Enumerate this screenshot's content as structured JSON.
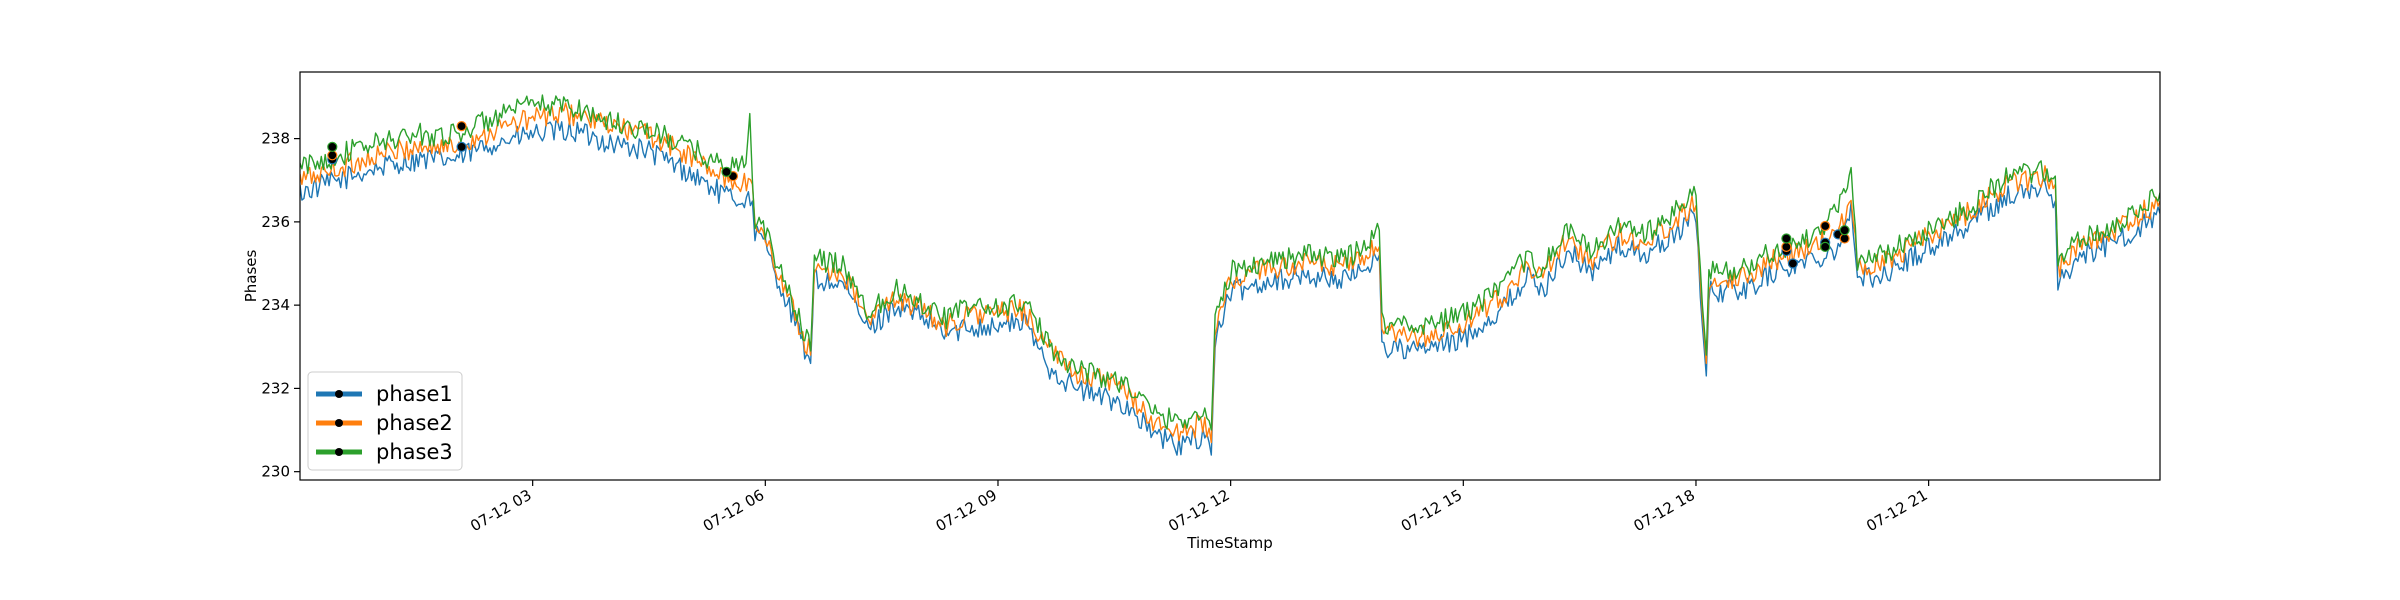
{
  "chart_data": {
    "type": "line",
    "title": "",
    "xlabel": "TimeStamp",
    "ylabel": "Phases",
    "xlim": [
      "07-12 00:00",
      "07-12 23:59"
    ],
    "ylim": [
      229.8,
      239.6
    ],
    "grid": false,
    "legend_position": "lower-left",
    "x_ticks": [
      "07-12 03",
      "07-12 06",
      "07-12 09",
      "07-12 12",
      "07-12 15",
      "07-12 18",
      "07-12 21"
    ],
    "y_ticks": [
      230,
      232,
      234,
      236,
      238
    ],
    "marker_color": "#000000",
    "series": [
      {
        "name": "phase1",
        "color": "#1f77b4",
        "points": [
          [
            "07-12 00:00",
            236.7
          ],
          [
            "07-12 00:30",
            237.0
          ],
          [
            "07-12 01:00",
            237.3
          ],
          [
            "07-12 01:30",
            237.5
          ],
          [
            "07-12 02:00",
            237.5
          ],
          [
            "07-12 02:30",
            237.9
          ],
          [
            "07-12 03:00",
            238.1
          ],
          [
            "07-12 03:30",
            238.2
          ],
          [
            "07-12 04:00",
            237.9
          ],
          [
            "07-12 04:30",
            237.7
          ],
          [
            "07-12 05:00",
            237.2
          ],
          [
            "07-12 05:30",
            236.6
          ],
          [
            "07-12 05:50",
            236.5
          ],
          [
            "07-12 05:52",
            235.8
          ],
          [
            "07-12 06:00",
            235.4
          ],
          [
            "07-12 06:20",
            233.8
          ],
          [
            "07-12 06:35",
            232.6
          ],
          [
            "07-12 06:38",
            234.6
          ],
          [
            "07-12 07:00",
            234.5
          ],
          [
            "07-12 07:20",
            233.4
          ],
          [
            "07-12 07:40",
            234.0
          ],
          [
            "07-12 08:00",
            233.7
          ],
          [
            "07-12 08:20",
            233.3
          ],
          [
            "07-12 08:40",
            233.5
          ],
          [
            "07-12 09:00",
            233.5
          ],
          [
            "07-12 09:20",
            233.6
          ],
          [
            "07-12 09:40",
            232.5
          ],
          [
            "07-12 10:00",
            232.0
          ],
          [
            "07-12 10:20",
            231.8
          ],
          [
            "07-12 10:40",
            231.6
          ],
          [
            "07-12 11:00",
            230.9
          ],
          [
            "07-12 11:20",
            230.6
          ],
          [
            "07-12 11:40",
            230.9
          ],
          [
            "07-12 11:45",
            230.4
          ],
          [
            "07-12 11:48",
            233.2
          ],
          [
            "07-12 12:00",
            234.3
          ],
          [
            "07-12 12:30",
            234.6
          ],
          [
            "07-12 13:00",
            234.7
          ],
          [
            "07-12 13:30",
            234.6
          ],
          [
            "07-12 13:55",
            235.2
          ],
          [
            "07-12 13:57",
            233.0
          ],
          [
            "07-12 14:20",
            232.9
          ],
          [
            "07-12 14:40",
            233.0
          ],
          [
            "07-12 15:00",
            233.2
          ],
          [
            "07-12 15:30",
            233.9
          ],
          [
            "07-12 15:50",
            234.7
          ],
          [
            "07-12 16:00",
            234.3
          ],
          [
            "07-12 16:20",
            235.3
          ],
          [
            "07-12 16:40",
            234.8
          ],
          [
            "07-12 17:00",
            235.4
          ],
          [
            "07-12 17:20",
            235.2
          ],
          [
            "07-12 17:40",
            235.6
          ],
          [
            "07-12 18:00",
            236.2
          ],
          [
            "07-12 18:05",
            233.5
          ],
          [
            "07-12 18:08",
            232.3
          ],
          [
            "07-12 18:10",
            234.3
          ],
          [
            "07-12 18:40",
            234.4
          ],
          [
            "07-12 19:00",
            234.8
          ],
          [
            "07-12 19:30",
            235.1
          ],
          [
            "07-12 19:50",
            235.4
          ],
          [
            "07-12 20:00",
            236.3
          ],
          [
            "07-12 20:05",
            234.6
          ],
          [
            "07-12 20:30",
            234.8
          ],
          [
            "07-12 21:00",
            235.4
          ],
          [
            "07-12 21:30",
            235.9
          ],
          [
            "07-12 22:00",
            236.6
          ],
          [
            "07-12 22:30",
            236.8
          ],
          [
            "07-12 22:38",
            236.5
          ],
          [
            "07-12 22:40",
            234.6
          ],
          [
            "07-12 23:00",
            235.2
          ],
          [
            "07-12 23:30",
            235.6
          ],
          [
            "07-12 23:59",
            236.2
          ]
        ],
        "anomalies": [
          [
            "07-12 00:25",
            237.5
          ],
          [
            "07-12 02:05",
            237.8
          ],
          [
            "07-12 19:10",
            235.3
          ],
          [
            "07-12 19:15",
            235.0
          ],
          [
            "07-12 19:40",
            235.5
          ],
          [
            "07-12 19:50",
            235.7
          ]
        ]
      },
      {
        "name": "phase2",
        "color": "#ff7f0e",
        "points": [
          [
            "07-12 00:00",
            237.0
          ],
          [
            "07-12 00:30",
            237.3
          ],
          [
            "07-12 01:00",
            237.6
          ],
          [
            "07-12 01:30",
            237.8
          ],
          [
            "07-12 02:00",
            237.8
          ],
          [
            "07-12 02:30",
            238.2
          ],
          [
            "07-12 03:00",
            238.5
          ],
          [
            "07-12 03:30",
            238.6
          ],
          [
            "07-12 04:00",
            238.3
          ],
          [
            "07-12 04:30",
            238.1
          ],
          [
            "07-12 05:00",
            237.6
          ],
          [
            "07-12 05:30",
            237.0
          ],
          [
            "07-12 05:50",
            236.9
          ],
          [
            "07-12 05:52",
            236.0
          ],
          [
            "07-12 06:00",
            235.6
          ],
          [
            "07-12 06:20",
            234.0
          ],
          [
            "07-12 06:35",
            232.8
          ],
          [
            "07-12 06:38",
            234.9
          ],
          [
            "07-12 07:00",
            234.8
          ],
          [
            "07-12 07:20",
            233.6
          ],
          [
            "07-12 07:40",
            234.2
          ],
          [
            "07-12 08:00",
            233.9
          ],
          [
            "07-12 08:20",
            233.5
          ],
          [
            "07-12 08:40",
            233.8
          ],
          [
            "07-12 09:00",
            233.8
          ],
          [
            "07-12 09:20",
            233.9
          ],
          [
            "07-12 09:40",
            232.9
          ],
          [
            "07-12 10:00",
            232.4
          ],
          [
            "07-12 10:20",
            232.2
          ],
          [
            "07-12 10:40",
            231.9
          ],
          [
            "07-12 11:00",
            231.2
          ],
          [
            "07-12 11:20",
            230.9
          ],
          [
            "07-12 11:40",
            231.2
          ],
          [
            "07-12 11:45",
            230.7
          ],
          [
            "07-12 11:48",
            233.4
          ],
          [
            "07-12 12:00",
            234.6
          ],
          [
            "07-12 12:30",
            234.9
          ],
          [
            "07-12 13:00",
            235.0
          ],
          [
            "07-12 13:30",
            234.9
          ],
          [
            "07-12 13:55",
            235.4
          ],
          [
            "07-12 13:57",
            233.3
          ],
          [
            "07-12 14:20",
            233.2
          ],
          [
            "07-12 14:40",
            233.3
          ],
          [
            "07-12 15:00",
            233.5
          ],
          [
            "07-12 15:30",
            234.2
          ],
          [
            "07-12 15:50",
            235.0
          ],
          [
            "07-12 16:00",
            234.6
          ],
          [
            "07-12 16:20",
            235.6
          ],
          [
            "07-12 16:40",
            235.1
          ],
          [
            "07-12 17:00",
            235.7
          ],
          [
            "07-12 17:20",
            235.5
          ],
          [
            "07-12 17:40",
            235.9
          ],
          [
            "07-12 18:00",
            236.5
          ],
          [
            "07-12 18:05",
            233.8
          ],
          [
            "07-12 18:08",
            232.6
          ],
          [
            "07-12 18:10",
            234.6
          ],
          [
            "07-12 18:40",
            234.7
          ],
          [
            "07-12 19:00",
            235.1
          ],
          [
            "07-12 19:30",
            235.4
          ],
          [
            "07-12 19:50",
            235.7
          ],
          [
            "07-12 20:00",
            236.7
          ],
          [
            "07-12 20:05",
            234.9
          ],
          [
            "07-12 20:30",
            235.1
          ],
          [
            "07-12 21:00",
            235.7
          ],
          [
            "07-12 21:30",
            236.2
          ],
          [
            "07-12 22:00",
            236.9
          ],
          [
            "07-12 22:30",
            237.1
          ],
          [
            "07-12 22:38",
            236.9
          ],
          [
            "07-12 22:40",
            234.9
          ],
          [
            "07-12 23:00",
            235.5
          ],
          [
            "07-12 23:30",
            235.9
          ],
          [
            "07-12 23:59",
            236.5
          ]
        ],
        "anomalies": [
          [
            "07-12 00:25",
            237.6
          ],
          [
            "07-12 02:05",
            238.3
          ],
          [
            "07-12 05:35",
            237.1
          ],
          [
            "07-12 19:10",
            235.4
          ],
          [
            "07-12 19:40",
            235.9
          ],
          [
            "07-12 19:55",
            235.6
          ]
        ]
      },
      {
        "name": "phase3",
        "color": "#2ca02c",
        "points": [
          [
            "07-12 00:00",
            237.3
          ],
          [
            "07-12 00:30",
            237.6
          ],
          [
            "07-12 01:00",
            237.9
          ],
          [
            "07-12 01:30",
            238.1
          ],
          [
            "07-12 02:00",
            238.1
          ],
          [
            "07-12 02:30",
            238.5
          ],
          [
            "07-12 03:00",
            238.8
          ],
          [
            "07-12 03:30",
            238.8
          ],
          [
            "07-12 04:00",
            238.4
          ],
          [
            "07-12 04:30",
            238.2
          ],
          [
            "07-12 05:00",
            237.8
          ],
          [
            "07-12 05:30",
            237.3
          ],
          [
            "07-12 05:45",
            237.4
          ],
          [
            "07-12 05:48",
            238.6
          ],
          [
            "07-12 05:50",
            237.0
          ],
          [
            "07-12 05:52",
            236.1
          ],
          [
            "07-12 06:00",
            235.7
          ],
          [
            "07-12 06:20",
            234.2
          ],
          [
            "07-12 06:35",
            232.9
          ],
          [
            "07-12 06:38",
            235.1
          ],
          [
            "07-12 07:00",
            235.0
          ],
          [
            "07-12 07:20",
            233.8
          ],
          [
            "07-12 07:40",
            234.4
          ],
          [
            "07-12 08:00",
            234.1
          ],
          [
            "07-12 08:20",
            233.7
          ],
          [
            "07-12 08:40",
            234.0
          ],
          [
            "07-12 09:00",
            233.9
          ],
          [
            "07-12 09:20",
            234.1
          ],
          [
            "07-12 09:40",
            233.0
          ],
          [
            "07-12 10:00",
            232.5
          ],
          [
            "07-12 10:20",
            232.3
          ],
          [
            "07-12 10:40",
            232.1
          ],
          [
            "07-12 11:00",
            231.4
          ],
          [
            "07-12 11:20",
            231.2
          ],
          [
            "07-12 11:40",
            231.5
          ],
          [
            "07-12 11:45",
            231.0
          ],
          [
            "07-12 11:48",
            233.6
          ],
          [
            "07-12 12:00",
            234.8
          ],
          [
            "07-12 12:30",
            235.1
          ],
          [
            "07-12 13:00",
            235.2
          ],
          [
            "07-12 13:30",
            235.1
          ],
          [
            "07-12 13:55",
            235.8
          ],
          [
            "07-12 13:57",
            233.6
          ],
          [
            "07-12 14:20",
            233.5
          ],
          [
            "07-12 14:40",
            233.6
          ],
          [
            "07-12 15:00",
            233.8
          ],
          [
            "07-12 15:30",
            234.4
          ],
          [
            "07-12 15:50",
            235.2
          ],
          [
            "07-12 16:00",
            234.8
          ],
          [
            "07-12 16:20",
            235.8
          ],
          [
            "07-12 16:40",
            235.3
          ],
          [
            "07-12 17:00",
            235.9
          ],
          [
            "07-12 17:20",
            235.7
          ],
          [
            "07-12 17:40",
            236.1
          ],
          [
            "07-12 18:00",
            236.7
          ],
          [
            "07-12 18:05",
            234.0
          ],
          [
            "07-12 18:08",
            232.8
          ],
          [
            "07-12 18:10",
            234.8
          ],
          [
            "07-12 18:40",
            234.9
          ],
          [
            "07-12 19:00",
            235.3
          ],
          [
            "07-12 19:30",
            235.6
          ],
          [
            "07-12 19:50",
            236.3
          ],
          [
            "07-12 20:00",
            237.4
          ],
          [
            "07-12 20:05",
            235.0
          ],
          [
            "07-12 20:30",
            235.3
          ],
          [
            "07-12 21:00",
            235.8
          ],
          [
            "07-12 21:30",
            236.3
          ],
          [
            "07-12 22:00",
            237.1
          ],
          [
            "07-12 22:30",
            237.2
          ],
          [
            "07-12 22:38",
            237.1
          ],
          [
            "07-12 22:40",
            235.1
          ],
          [
            "07-12 23:00",
            235.6
          ],
          [
            "07-12 23:30",
            236.0
          ],
          [
            "07-12 23:59",
            236.7
          ]
        ],
        "anomalies": [
          [
            "07-12 00:25",
            237.8
          ],
          [
            "07-12 05:30",
            237.2
          ],
          [
            "07-12 19:10",
            235.6
          ],
          [
            "07-12 19:40",
            235.4
          ],
          [
            "07-12 19:55",
            235.8
          ]
        ]
      }
    ]
  }
}
